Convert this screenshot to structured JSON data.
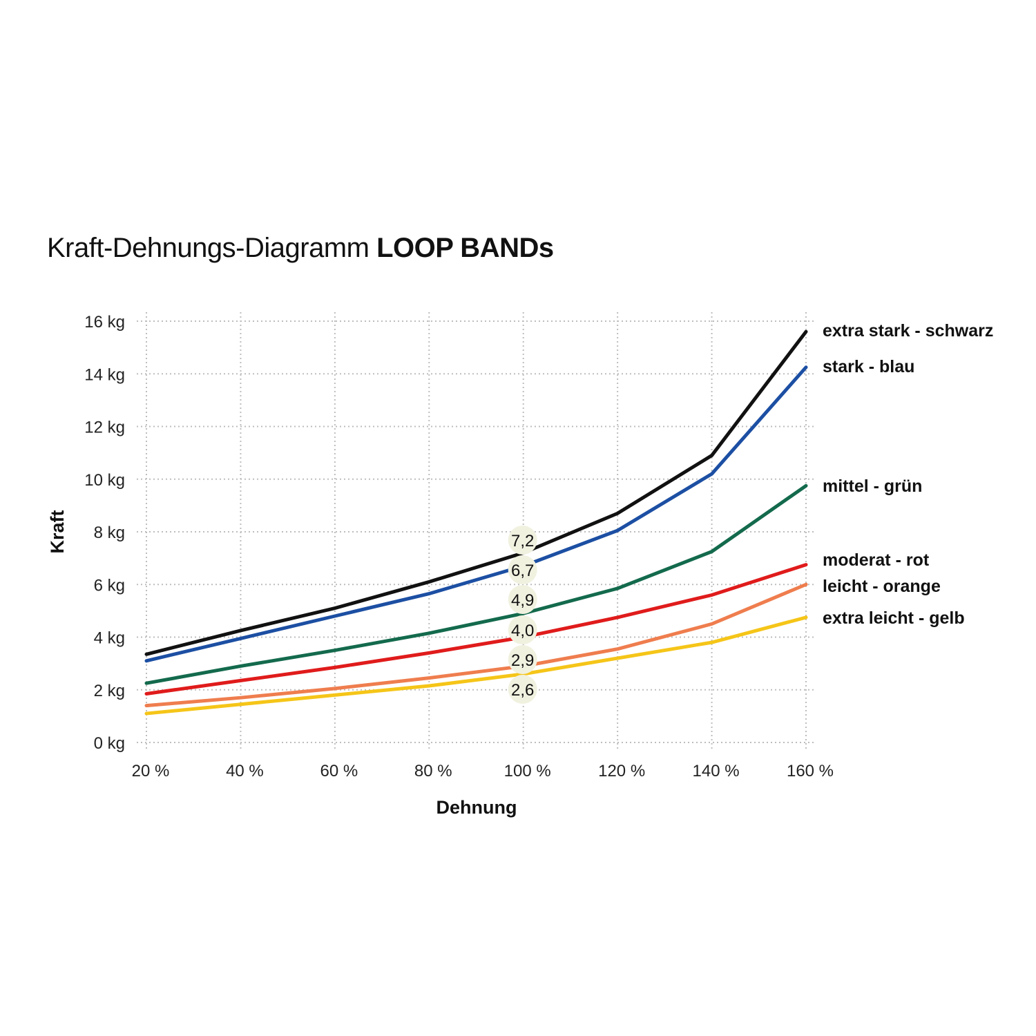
{
  "title": {
    "normal": "Kraft-Dehnungs-Diagramm",
    "bold": "LOOP BANDs"
  },
  "chart_data": {
    "type": "line",
    "title": "Kraft-Dehnungs-Diagramm LOOP BANDs",
    "xlabel": "Dehnung",
    "ylabel": "Kraft",
    "x": [
      20,
      40,
      60,
      80,
      100,
      120,
      140,
      160
    ],
    "x_tick_labels": [
      "20 %",
      "40 %",
      "60 %",
      "80 %",
      "100 %",
      "120 %",
      "140 %",
      "160 %"
    ],
    "y_ticks": [
      0,
      2,
      4,
      6,
      8,
      10,
      12,
      14,
      16
    ],
    "y_tick_labels": [
      "0 kg",
      "2 kg",
      "4 kg",
      "6 kg",
      "8 kg",
      "10 kg",
      "12 kg",
      "14 kg",
      "16 kg"
    ],
    "xlim": [
      20,
      160
    ],
    "ylim": [
      0,
      16
    ],
    "grid": "dotted",
    "legend": "right, at line ends",
    "series": [
      {
        "name": "extra stark - schwarz",
        "color": "#111111",
        "values": [
          3.35,
          4.25,
          5.1,
          6.1,
          7.2,
          8.7,
          10.9,
          15.6
        ],
        "value_label": "7,2"
      },
      {
        "name": "stark - blau",
        "color": "#1c4fa3",
        "values": [
          3.1,
          3.95,
          4.8,
          5.65,
          6.7,
          8.05,
          10.2,
          14.25
        ],
        "value_label": "6,7"
      },
      {
        "name": "mittel - grün",
        "color": "#136a4c",
        "values": [
          2.25,
          2.9,
          3.5,
          4.15,
          4.9,
          5.85,
          7.25,
          9.75
        ],
        "value_label": "4,9"
      },
      {
        "name": "moderat - rot",
        "color": "#e01b1b",
        "values": [
          1.85,
          2.35,
          2.85,
          3.4,
          4.0,
          4.75,
          5.6,
          6.75
        ],
        "value_label": "4,0"
      },
      {
        "name": "leicht - orange",
        "color": "#ef7d4e",
        "values": [
          1.4,
          1.7,
          2.05,
          2.45,
          2.9,
          3.55,
          4.5,
          6.0
        ],
        "value_label": "2,9"
      },
      {
        "name": "extra leicht - gelb",
        "color": "#f5c518",
        "values": [
          1.1,
          1.45,
          1.8,
          2.15,
          2.6,
          3.2,
          3.8,
          4.75
        ],
        "value_label": "2,6"
      }
    ],
    "value_labels_at_x": 100
  }
}
